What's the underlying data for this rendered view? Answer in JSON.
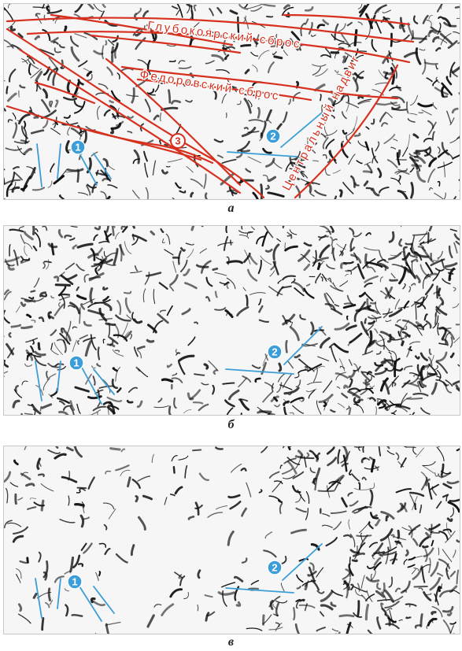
{
  "captions": {
    "a": "а",
    "b": "б",
    "c": "в"
  },
  "fault_labels": {
    "glubokoyarsky": "Глубокоярский сброс",
    "fedorovsky": "Федоровский сброс",
    "central_thrust": "Центральный надвиг"
  },
  "markers": {
    "one": "1",
    "two": "2",
    "three": "3"
  },
  "colors": {
    "fault_red": "#d8301e",
    "marker_blue": "#3b9ed8",
    "texture_black": "#111111",
    "panel_bg": "#f6f6f6"
  }
}
